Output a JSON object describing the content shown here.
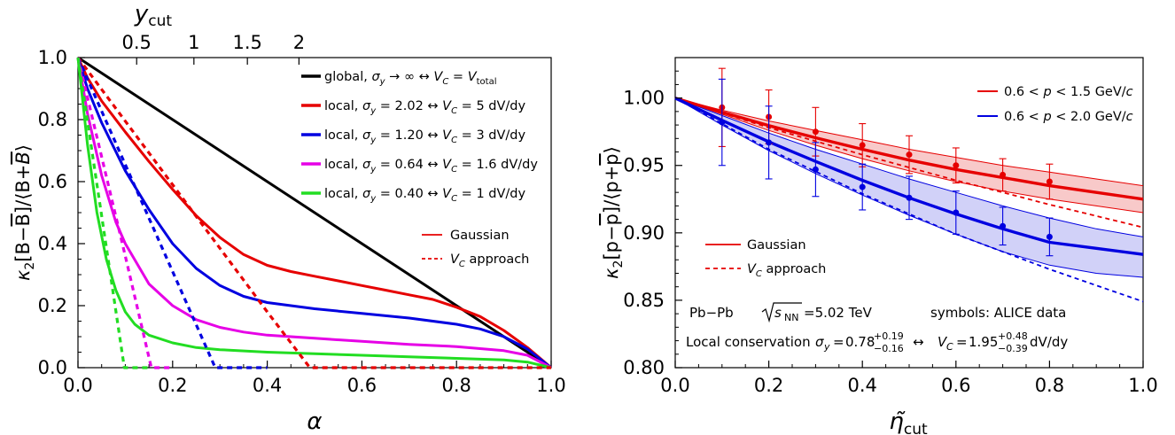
{
  "chart_data": [
    {
      "type": "line",
      "xlabel": "α",
      "ylabel": "κ₂[B−B̄]/⟨B+B̄⟩",
      "top_axis": {
        "label": "y_cut",
        "ticks": [
          {
            "value": 0.5,
            "label": "0.5"
          },
          {
            "value": 1,
            "label": "1"
          },
          {
            "value": 1.5,
            "label": "1.5"
          },
          {
            "value": 2,
            "label": "2"
          }
        ]
      },
      "xlim": [
        0,
        1
      ],
      "ylim": [
        0,
        1
      ],
      "xticks": [
        "0.0",
        "0.2",
        "0.4",
        "0.6",
        "0.8",
        "1.0"
      ],
      "yticks": [
        "0.0",
        "0.2",
        "0.4",
        "0.6",
        "0.8",
        "1.0"
      ],
      "grid": false,
      "legend_position": "top-right",
      "series": [
        {
          "name": "global, σ_y → ∞ ↔ V_C = V_total",
          "color": "#000000",
          "style": "solid",
          "x": [
            0,
            1
          ],
          "y": [
            1,
            0
          ]
        },
        {
          "name": "local, σ_y = 2.02 ↔ V_C = 5 dV/dy",
          "color": "#e60000",
          "style": "solid",
          "x": [
            0,
            0.02,
            0.05,
            0.1,
            0.15,
            0.2,
            0.25,
            0.3,
            0.35,
            0.4,
            0.45,
            0.5,
            0.55,
            0.6,
            0.65,
            0.7,
            0.75,
            0.8,
            0.85,
            0.9,
            0.95,
            1.0
          ],
          "y": [
            1.0,
            0.935,
            0.86,
            0.76,
            0.665,
            0.575,
            0.49,
            0.42,
            0.365,
            0.33,
            0.31,
            0.295,
            0.28,
            0.265,
            0.25,
            0.235,
            0.22,
            0.195,
            0.165,
            0.12,
            0.065,
            0.0
          ]
        },
        {
          "name": "local, σ_y = 1.20 ↔ V_C = 3 dV/dy",
          "color": "#0000e0",
          "style": "solid",
          "x": [
            0,
            0.02,
            0.05,
            0.1,
            0.15,
            0.2,
            0.25,
            0.3,
            0.35,
            0.4,
            0.45,
            0.5,
            0.6,
            0.7,
            0.8,
            0.85,
            0.9,
            0.95,
            1.0
          ],
          "y": [
            1.0,
            0.9,
            0.79,
            0.635,
            0.51,
            0.4,
            0.32,
            0.265,
            0.23,
            0.21,
            0.2,
            0.19,
            0.175,
            0.16,
            0.14,
            0.125,
            0.1,
            0.06,
            0.0
          ]
        },
        {
          "name": "local, σ_y = 0.64 ↔ V_C = 1.6 dV/dy",
          "color": "#e600e6",
          "style": "solid",
          "x": [
            0,
            0.02,
            0.05,
            0.08,
            0.1,
            0.15,
            0.2,
            0.25,
            0.3,
            0.35,
            0.4,
            0.5,
            0.6,
            0.7,
            0.8,
            0.9,
            0.95,
            1.0
          ],
          "y": [
            1.0,
            0.82,
            0.62,
            0.47,
            0.4,
            0.27,
            0.2,
            0.155,
            0.13,
            0.115,
            0.105,
            0.095,
            0.085,
            0.075,
            0.068,
            0.055,
            0.04,
            0.0
          ]
        },
        {
          "name": "local, σ_y = 0.40 ↔ V_C = 1 dV/dy",
          "color": "#22dd22",
          "style": "solid",
          "x": [
            0,
            0.02,
            0.04,
            0.06,
            0.08,
            0.1,
            0.12,
            0.15,
            0.2,
            0.25,
            0.3,
            0.4,
            0.5,
            0.6,
            0.7,
            0.8,
            0.9,
            0.95,
            1.0
          ],
          "y": [
            1.0,
            0.72,
            0.5,
            0.35,
            0.25,
            0.18,
            0.14,
            0.105,
            0.08,
            0.065,
            0.058,
            0.05,
            0.045,
            0.04,
            0.035,
            0.03,
            0.025,
            0.018,
            0.0
          ]
        },
        {
          "name": "V_C approach (5 dV/dy)",
          "color": "#e60000",
          "style": "dashed",
          "x": [
            0,
            0.2,
            0.4,
            0.49,
            1.0
          ],
          "y": [
            1.0,
            0.59,
            0.18,
            0.0,
            0.0
          ]
        },
        {
          "name": "V_C approach (3 dV/dy)",
          "color": "#0000e0",
          "style": "dashed",
          "x": [
            0,
            0.1,
            0.2,
            0.29,
            0.4
          ],
          "y": [
            1.0,
            0.655,
            0.31,
            0.0,
            0.0
          ]
        },
        {
          "name": "V_C approach (1.6 dV/dy)",
          "color": "#e600e6",
          "style": "dashed",
          "x": [
            0,
            0.05,
            0.1,
            0.155,
            0.2
          ],
          "y": [
            1.0,
            0.68,
            0.36,
            0.0,
            0.0
          ]
        },
        {
          "name": "V_C approach (1 dV/dy)",
          "color": "#22dd22",
          "style": "dashed",
          "x": [
            0,
            0.05,
            0.098,
            0.15
          ],
          "y": [
            1.0,
            0.49,
            0.0,
            0.0
          ]
        }
      ],
      "legend": [
        {
          "pre": "global, ",
          "sym": "σ",
          "symsub": "y",
          "mid": " → ∞ ↔ ",
          "vc": "V",
          "vcsub": "C",
          "post": " = ",
          "post2": "V",
          "post2sub": "total",
          "color": "#000000"
        },
        {
          "pre": "local, ",
          "sym": "σ",
          "symsub": "y",
          "mid": " = 2.02 ↔ ",
          "vc": "V",
          "vcsub": "C",
          "post": " = 5 dV/dy",
          "color": "#e60000"
        },
        {
          "pre": "local, ",
          "sym": "σ",
          "symsub": "y",
          "mid": " = 1.20 ↔ ",
          "vc": "V",
          "vcsub": "C",
          "post": " = 3 dV/dy",
          "color": "#0000e0"
        },
        {
          "pre": "local, ",
          "sym": "σ",
          "symsub": "y",
          "mid": " = 0.64 ↔ ",
          "vc": "V",
          "vcsub": "C",
          "post": " = 1.6 dV/dy",
          "color": "#e600e6"
        },
        {
          "pre": "local, ",
          "sym": "σ",
          "symsub": "y",
          "mid": " = 0.40 ↔ ",
          "vc": "V",
          "vcsub": "C",
          "post": " = 1 dV/dy",
          "color": "#22dd22"
        }
      ],
      "style_legend": [
        {
          "label": "Gaussian",
          "style": "solid"
        },
        {
          "label": "approach",
          "prefix": "V",
          "prefix_sub": "C",
          "style": "dashed"
        }
      ]
    },
    {
      "type": "line",
      "xlabel": "η̃_cut",
      "ylabel": "κ₂[p−p̄]/⟨p+p̄⟩",
      "xlim": [
        0,
        1
      ],
      "ylim": [
        0.8,
        1.03
      ],
      "xticks": [
        "0.0",
        "0.2",
        "0.4",
        "0.6",
        "0.8",
        "1.0"
      ],
      "yticks": [
        "0.80",
        "0.85",
        "0.90",
        "0.95",
        "1.00"
      ],
      "grid": false,
      "legend_position": "top-right",
      "series": [
        {
          "name": "0.6 < p < 1.5 GeV/c",
          "color": "#e60000",
          "gaussian": {
            "x": [
              0,
              0.1,
              0.2,
              0.3,
              0.4,
              0.5,
              0.6,
              0.7,
              0.8,
              0.9,
              1.0
            ],
            "y": [
              1.0,
              0.9895,
              0.9795,
              0.9705,
              0.962,
              0.954,
              0.947,
              0.941,
              0.935,
              0.93,
              0.925
            ]
          },
          "band_upper": [
            1.0,
            0.991,
            0.983,
            0.976,
            0.969,
            0.962,
            0.956,
            0.95,
            0.945,
            0.94,
            0.935
          ],
          "band_lower": [
            1.0,
            0.988,
            0.976,
            0.965,
            0.955,
            0.946,
            0.938,
            0.931,
            0.925,
            0.92,
            0.915
          ],
          "vc": {
            "x": [
              0,
              0.2,
              0.4,
              0.6,
              0.8,
              1.0
            ],
            "y": [
              1.0,
              0.978,
              0.958,
              0.939,
              0.921,
              0.904
            ]
          },
          "data": {
            "x": [
              0.1,
              0.2,
              0.3,
              0.4,
              0.5,
              0.6,
              0.7,
              0.8
            ],
            "y": [
              0.993,
              0.986,
              0.975,
              0.965,
              0.958,
              0.95,
              0.943,
              0.938
            ],
            "err": [
              0.029,
              0.02,
              0.018,
              0.016,
              0.014,
              0.013,
              0.012,
              0.013
            ]
          }
        },
        {
          "name": "0.6 < p < 2.0 GeV/c",
          "color": "#0000e0",
          "gaussian": {
            "x": [
              0,
              0.1,
              0.2,
              0.3,
              0.4,
              0.5,
              0.6,
              0.7,
              0.8,
              0.9,
              1.0
            ],
            "y": [
              1.0,
              0.9835,
              0.9675,
              0.953,
              0.939,
              0.926,
              0.914,
              0.903,
              0.893,
              0.8885,
              0.884
            ]
          },
          "band_upper": [
            1.0,
            0.987,
            0.974,
            0.962,
            0.951,
            0.94,
            0.93,
            0.92,
            0.911,
            0.903,
            0.897
          ],
          "band_lower": [
            1.0,
            0.98,
            0.961,
            0.944,
            0.928,
            0.913,
            0.899,
            0.886,
            0.876,
            0.87,
            0.867
          ],
          "vc": {
            "x": [
              0,
              0.2,
              0.4,
              0.6,
              0.8,
              1.0
            ],
            "y": [
              1.0,
              0.962,
              0.929,
              0.899,
              0.873,
              0.849
            ]
          },
          "data": {
            "x": [
              0.1,
              0.2,
              0.3,
              0.4,
              0.5,
              0.6,
              0.7,
              0.8
            ],
            "y": [
              0.982,
              0.967,
              0.947,
              0.934,
              0.926,
              0.915,
              0.905,
              0.897
            ],
            "err": [
              0.032,
              0.027,
              0.02,
              0.017,
              0.016,
              0.016,
              0.014,
              0.014
            ]
          }
        }
      ],
      "legend": [
        {
          "label": "0.6 < p < 1.5 GeV/c",
          "parts": [
            "0.6 < ",
            "p",
            " < 1.5 GeV/",
            "c"
          ],
          "color": "#e60000"
        },
        {
          "label": "0.6 < p < 2.0 GeV/c",
          "parts": [
            "0.6 < ",
            "p",
            " < 2.0 GeV/",
            "c"
          ],
          "color": "#0000e0"
        }
      ],
      "style_legend": [
        {
          "label": "Gaussian",
          "style": "solid"
        },
        {
          "label": "approach",
          "prefix": "V",
          "prefix_sub": "C",
          "style": "dashed"
        }
      ],
      "annotations": {
        "system": "Pb−Pb",
        "energy_symbol": "s",
        "energy_sub": "NN",
        "energy_value": "=5.02 TeV",
        "symbols_note": "symbols: ALICE data",
        "conservation_text": "Local conservation",
        "sigma_symbol": "σ",
        "sigma_sub": "y",
        "sigma_value": "0.78",
        "sigma_plus": "+0.19",
        "sigma_minus": "−0.16",
        "arrow": "↔",
        "vc_symbol": "V",
        "vc_sub": "C",
        "vc_value": "1.95",
        "vc_plus": "+0.48",
        "vc_minus": "−0.39",
        "vc_unit": "dV/dy"
      }
    }
  ]
}
